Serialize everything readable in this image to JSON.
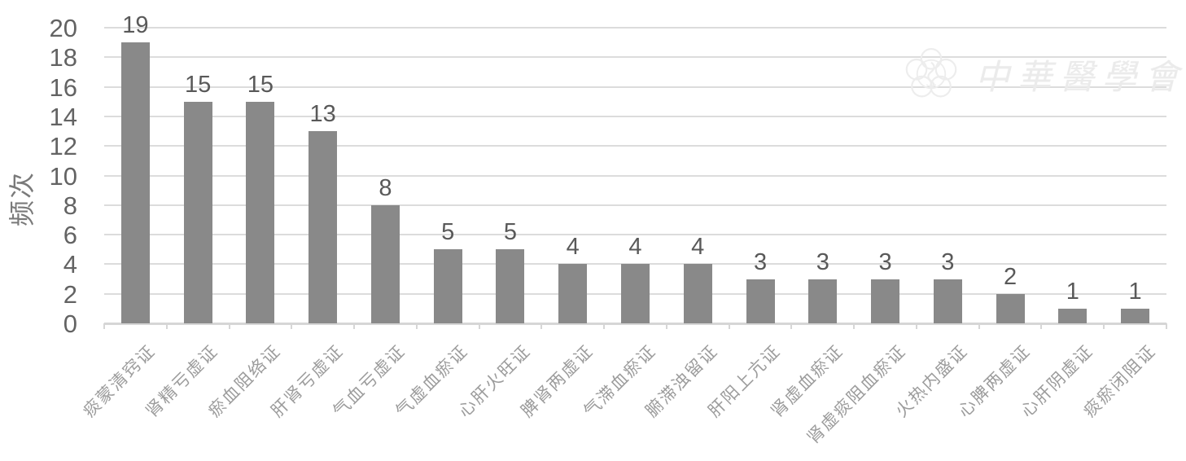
{
  "watermark": {
    "logo_icon": "plum-blossom-medical-logo",
    "text": "中華醫學會"
  },
  "chart_data": {
    "type": "bar",
    "title": "",
    "xlabel": "",
    "ylabel": "频次",
    "ylim": [
      0,
      20
    ],
    "ytick_step": 2,
    "yticks": [
      0,
      2,
      4,
      6,
      8,
      10,
      12,
      14,
      16,
      18,
      20
    ],
    "grid": "horizontal",
    "legend": "none",
    "data_labels": true,
    "bar_color": "#898989",
    "gridline_color": "#dcdcdc",
    "value_label_color": "#595959",
    "axis_label_color": "#636363",
    "category_label_color": "#9c9c9c",
    "categories": [
      "痰蒙清窍证",
      "肾精亏虚证",
      "瘀血阻络证",
      "肝肾亏虚证",
      "气血亏虚证",
      "气虚血瘀证",
      "心肝火旺证",
      "脾肾两虚证",
      "气滞血瘀证",
      "腑滞浊留证",
      "肝阳上亢证",
      "肾虚血瘀证",
      "肾虚痰阻血瘀证",
      "火热内盛证",
      "心脾两虚证",
      "心肝阴虚证",
      "痰瘀闭阻证"
    ],
    "values": [
      19,
      15,
      15,
      13,
      8,
      5,
      5,
      4,
      4,
      4,
      3,
      3,
      3,
      3,
      2,
      1,
      1
    ]
  }
}
